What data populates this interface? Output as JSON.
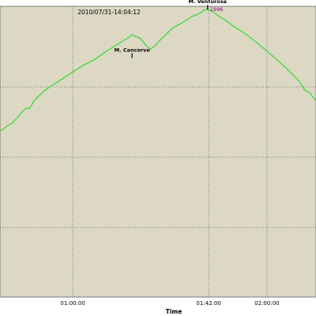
{
  "chart_data": {
    "type": "line",
    "timestamp": "2010/07/31-14:04:12",
    "xlabel": "Time",
    "x_tick_labels": [
      "01:00:00",
      "01:42:00",
      "02:00:00"
    ],
    "x_ticks_seconds": [
      3600,
      6120,
      7200
    ],
    "xlim_seconds": [
      2250,
      8110
    ],
    "ylim": [
      1180,
      2010
    ],
    "grid": true,
    "peaks": [
      {
        "name": "M. Cancervo",
        "x_seconds": 4700,
        "y": 1858
      },
      {
        "name": "M. Venturosa",
        "x_seconds": 6100,
        "y": 1996,
        "value_label": "1996"
      }
    ],
    "series": [
      {
        "color": "#3cd83c",
        "points": [
          [
            2250,
            1655
          ],
          [
            2310,
            1659
          ],
          [
            2380,
            1668
          ],
          [
            2470,
            1676
          ],
          [
            2560,
            1690
          ],
          [
            2650,
            1707
          ],
          [
            2740,
            1720
          ],
          [
            2800,
            1718
          ],
          [
            2880,
            1740
          ],
          [
            2970,
            1754
          ],
          [
            3070,
            1768
          ],
          [
            3200,
            1783
          ],
          [
            3400,
            1802
          ],
          [
            3600,
            1823
          ],
          [
            3800,
            1842
          ],
          [
            4000,
            1858
          ],
          [
            4200,
            1879
          ],
          [
            4400,
            1899
          ],
          [
            4550,
            1913
          ],
          [
            4650,
            1922
          ],
          [
            4700,
            1929
          ],
          [
            4750,
            1925
          ],
          [
            4800,
            1922
          ],
          [
            4860,
            1917
          ],
          [
            4920,
            1906
          ],
          [
            4990,
            1893
          ],
          [
            5050,
            1888
          ],
          [
            5120,
            1897
          ],
          [
            5250,
            1918
          ],
          [
            5450,
            1948
          ],
          [
            5650,
            1965
          ],
          [
            5800,
            1980
          ],
          [
            5950,
            1990
          ],
          [
            6050,
            2000
          ],
          [
            6100,
            2002
          ],
          [
            6200,
            1994
          ],
          [
            6300,
            1983
          ],
          [
            6450,
            1968
          ],
          [
            6600,
            1951
          ],
          [
            6800,
            1932
          ],
          [
            7000,
            1908
          ],
          [
            7200,
            1882
          ],
          [
            7400,
            1856
          ],
          [
            7600,
            1827
          ],
          [
            7800,
            1796
          ],
          [
            7900,
            1771
          ],
          [
            7950,
            1767
          ],
          [
            8000,
            1762
          ],
          [
            8050,
            1752
          ],
          [
            8110,
            1740
          ]
        ]
      }
    ]
  }
}
